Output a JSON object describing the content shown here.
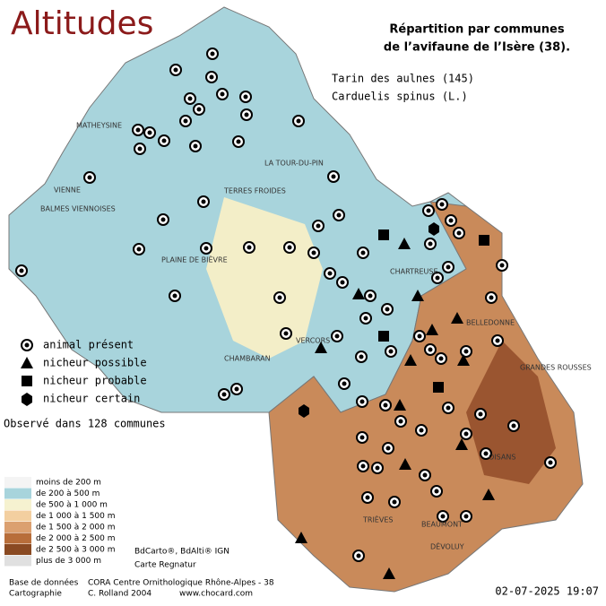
{
  "title": "Altitudes",
  "subtitle": [
    "Répartition par communes",
    "de l’avifaune de l’Isère (38)."
  ],
  "species": [
    "Tarin des aulnes  (145)",
    "Carduelis spinus (L.)"
  ],
  "legend": [
    "animal présent",
    "nicheur possible",
    "nicheur probable",
    "nicheur certain"
  ],
  "observed": "Observé dans 128 communes",
  "altitude_legend": [
    "moins de 200 m",
    "de 200 à 500 m",
    "de 500 à 1 000 m",
    "de 1 000 à 1 500 m",
    "de 1 500 à 2 000 m",
    "de 2 000 à 2 500 m",
    "de 2 500 à 3 000 m",
    "plus de 3 000 m"
  ],
  "sources": [
    "BdCarto®, BdAlti® IGN",
    "Carte Regnatur"
  ],
  "credits": [
    "Base de données",
    "CORA Centre Ornithologique Rhône-Alpes - 38",
    "Cartographie",
    "C. Rolland 2004",
    "www.chocard.com"
  ],
  "date": "02-07-2025 19:07",
  "places": [
    "VIENNE",
    "LA TOUR-DU-PIN",
    "CHARTREUSE",
    "VERCORS",
    "BELLEDONNE",
    "GRANDES ROUSSES",
    "OISANS",
    "TRIÈVES",
    "BEAUMONT",
    "DÉVOLUY",
    "CHAMBARAN",
    "PLAINE DE BIÈVRE",
    "TERRES FROIDES",
    "BALMES VIENNOISES",
    "MATHEYSINE"
  ]
}
